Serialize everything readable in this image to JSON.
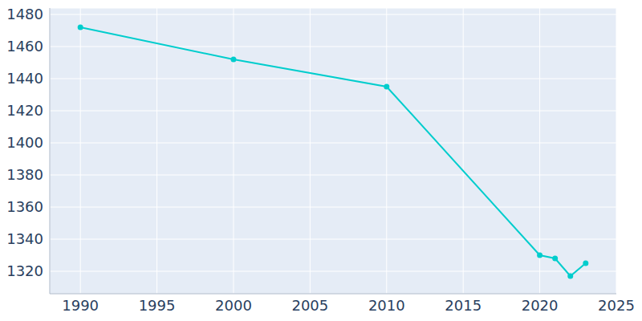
{
  "chart_data": {
    "type": "line",
    "x": [
      1990,
      2000,
      2010,
      2020,
      2021,
      2022,
      2023
    ],
    "values": [
      1472,
      1452,
      1435,
      1330,
      1328,
      1317,
      1325
    ],
    "color": "#00cdcd",
    "marker": "circle",
    "xlim": [
      1988,
      2025
    ],
    "xticks": [
      1990,
      1995,
      2000,
      2005,
      2010,
      2015,
      2020,
      2025
    ],
    "ylim": [
      1306,
      1484
    ],
    "yticks": [
      1320,
      1340,
      1360,
      1380,
      1400,
      1420,
      1440,
      1460,
      1480
    ],
    "grid": true
  }
}
